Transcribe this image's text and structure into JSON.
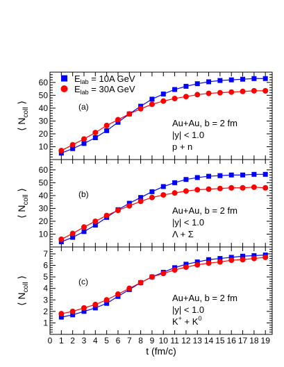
{
  "legend": {
    "items": [
      {
        "label_main": "E",
        "label_sub": "lab",
        "label_rest": " = 10A GeV",
        "color": "#0000ff",
        "marker": "square"
      },
      {
        "label_main": "E",
        "label_sub": "lab",
        "label_rest": " = 30A GeV",
        "color": "#ff0000",
        "marker": "circle"
      }
    ]
  },
  "xaxis": {
    "label": "t (fm/c)",
    "ticks": [
      "0",
      "1",
      "2",
      "3",
      "4",
      "5",
      "6",
      "7",
      "8",
      "9",
      "10",
      "11",
      "12",
      "13",
      "14",
      "15",
      "16",
      "17",
      "18",
      "19"
    ]
  },
  "chart_data": [
    {
      "type": "line",
      "panel_label": "(a)",
      "ylabel": "⟨ N",
      "ylabel_sub": "coll",
      "ylabel_close": " ⟩",
      "ylim": [
        0,
        68
      ],
      "yticks": [
        "10",
        "20",
        "30",
        "40",
        "50",
        "60"
      ],
      "annotations": [
        "Au+Au, b = 2 fm",
        "|y| < 1.0",
        "p + n"
      ],
      "x": [
        1,
        2,
        3,
        4,
        5,
        6,
        7,
        8,
        9,
        10,
        11,
        12,
        13,
        14,
        15,
        16,
        17,
        18,
        19
      ],
      "series": [
        {
          "name": "E_lab = 10A GeV",
          "color": "#0000ff",
          "marker": "square",
          "values": [
            5,
            8.5,
            12.5,
            17,
            22.5,
            29,
            35.5,
            41.5,
            47,
            51,
            54.5,
            57,
            59,
            60.5,
            61.5,
            62,
            62.5,
            63,
            63
          ]
        },
        {
          "name": "E_lab = 30A GeV",
          "color": "#ff0000",
          "marker": "circle",
          "values": [
            7,
            11.5,
            16,
            21,
            26.5,
            31,
            35.5,
            39.5,
            43,
            45.5,
            47.5,
            49,
            50.5,
            51.5,
            52,
            52.5,
            53,
            53.5,
            53.5
          ]
        }
      ]
    },
    {
      "type": "line",
      "panel_label": "(b)",
      "ylabel": "⟨ N",
      "ylabel_sub": "coll",
      "ylabel_close": " ⟩",
      "ylim": [
        0,
        68
      ],
      "yticks": [
        "10",
        "20",
        "30",
        "40",
        "50",
        "60"
      ],
      "annotations": [
        "Au+Au, b = 2 fm",
        "|y| < 1.0",
        "Λ + Σ"
      ],
      "x": [
        1,
        2,
        3,
        4,
        5,
        6,
        7,
        8,
        9,
        10,
        11,
        12,
        13,
        14,
        15,
        16,
        17,
        18,
        19
      ],
      "series": [
        {
          "name": "E_lab = 10A GeV",
          "color": "#0000ff",
          "marker": "square",
          "values": [
            4,
            7.5,
            12,
            17,
            23,
            29,
            34,
            38.5,
            43,
            47,
            50,
            52.5,
            54,
            55,
            55.5,
            56,
            56,
            56.5,
            56.5
          ]
        },
        {
          "name": "E_lab = 30A GeV",
          "color": "#ff0000",
          "marker": "circle",
          "values": [
            6,
            10.5,
            15.5,
            20,
            24.5,
            28.5,
            32,
            35.5,
            38.5,
            40.5,
            42,
            43.5,
            44.5,
            45,
            45.5,
            46,
            46,
            46.5,
            46
          ]
        }
      ]
    },
    {
      "type": "line",
      "panel_label": "(c)",
      "ylabel": "⟨ N",
      "ylabel_sub": "coll",
      "ylabel_close": " ⟩",
      "ylim": [
        0,
        7.6
      ],
      "yticks": [
        "1",
        "2",
        "3",
        "4",
        "5",
        "6",
        "7"
      ],
      "annotations": [
        "Au+Au, b = 2 fm",
        "|y| < 1.0",
        "K + K"
      ],
      "annotation_superscripts": [
        "+",
        "0"
      ],
      "x": [
        1,
        2,
        3,
        4,
        5,
        6,
        7,
        8,
        9,
        10,
        11,
        12,
        13,
        14,
        15,
        16,
        17,
        18,
        19
      ],
      "series": [
        {
          "name": "E_lab = 10A GeV",
          "color": "#0000ff",
          "marker": "square",
          "values": [
            1.5,
            1.7,
            2.0,
            2.3,
            2.7,
            3.3,
            3.9,
            4.5,
            5.0,
            5.4,
            5.8,
            6.1,
            6.3,
            6.5,
            6.6,
            6.7,
            6.8,
            6.85,
            6.9
          ]
        },
        {
          "name": "E_lab = 30A GeV",
          "color": "#ff0000",
          "marker": "circle",
          "values": [
            1.8,
            2.0,
            2.3,
            2.6,
            3.0,
            3.5,
            4.0,
            4.5,
            5.0,
            5.3,
            5.6,
            5.85,
            6.05,
            6.2,
            6.3,
            6.45,
            6.5,
            6.6,
            6.7
          ]
        }
      ]
    }
  ]
}
